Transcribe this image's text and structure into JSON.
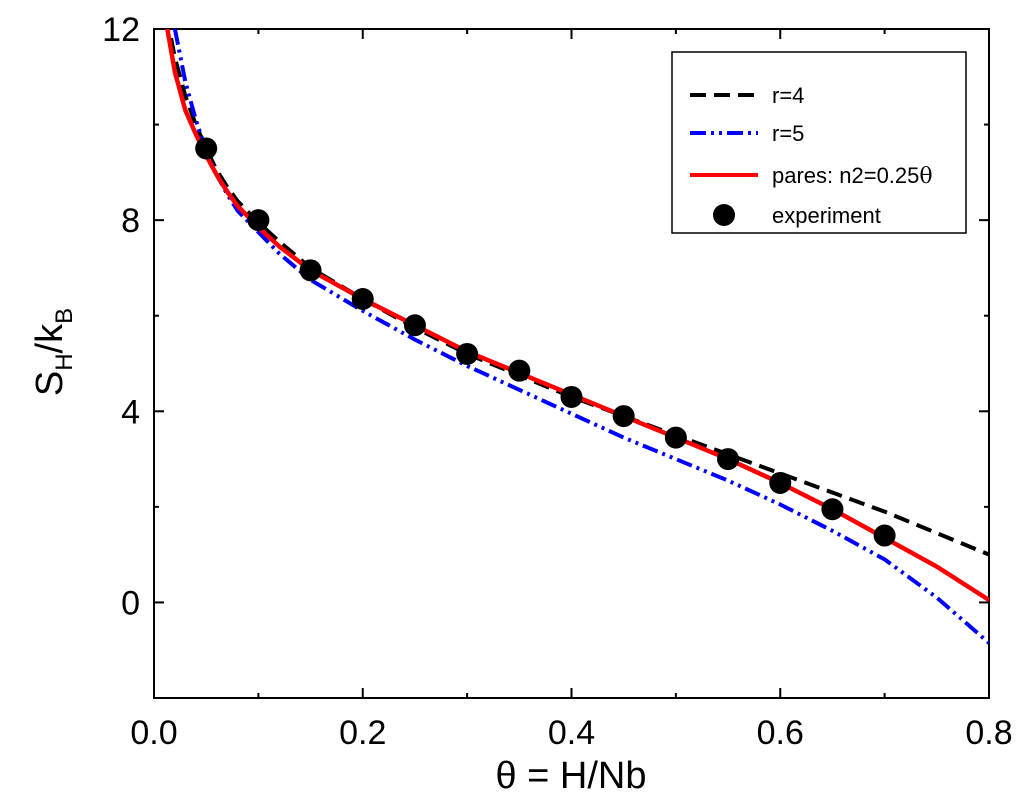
{
  "chart_data": {
    "type": "line",
    "title": "",
    "xlabel": "θ = H/Nb",
    "ylabel": {
      "main": "S",
      "sub1": "H",
      "slash": "/k",
      "sub2": "B"
    },
    "xlim": [
      0.0,
      0.8
    ],
    "ylim": [
      -2.0,
      12.0
    ],
    "xticks": [
      0.0,
      0.2,
      0.4,
      0.6,
      0.8
    ],
    "xtick_labels": [
      "0.0",
      "0.2",
      "0.4",
      "0.6",
      "0.8"
    ],
    "yticks": [
      0,
      4,
      8,
      12
    ],
    "ytick_labels": [
      "0",
      "4",
      "8",
      "12"
    ],
    "grid": false,
    "legend_position": "top-right",
    "legend_lines": [
      {
        "text": "r=4",
        "color": "#000000",
        "style": "dash",
        "x": [
          0.012,
          0.02,
          0.03,
          0.04,
          0.05,
          0.06,
          0.07,
          0.08,
          0.1,
          0.12,
          0.15,
          0.2,
          0.25,
          0.3,
          0.35,
          0.4,
          0.45,
          0.5,
          0.55,
          0.6,
          0.65,
          0.7,
          0.75,
          0.8
        ],
        "y": [
          12.3,
          11.4,
          10.6,
          10.0,
          9.5,
          9.05,
          8.7,
          8.4,
          7.95,
          7.55,
          7.0,
          6.35,
          5.75,
          5.2,
          4.75,
          4.3,
          3.9,
          3.5,
          3.1,
          2.7,
          2.3,
          1.9,
          1.45,
          1.0
        ]
      },
      {
        "text": "r=5",
        "color": "#0000ff",
        "style": "dashdotdot",
        "x": [
          0.02,
          0.03,
          0.04,
          0.05,
          0.06,
          0.07,
          0.08,
          0.1,
          0.12,
          0.15,
          0.2,
          0.25,
          0.3,
          0.35,
          0.4,
          0.45,
          0.5,
          0.55,
          0.6,
          0.65,
          0.7,
          0.75,
          0.8
        ],
        "y": [
          12.0,
          10.9,
          10.1,
          9.45,
          8.95,
          8.55,
          8.2,
          7.75,
          7.3,
          6.75,
          6.1,
          5.5,
          4.95,
          4.45,
          3.95,
          3.45,
          3.0,
          2.55,
          2.05,
          1.5,
          0.9,
          0.1,
          -0.85
        ]
      },
      {
        "text": "pares: n2=0.25",
        "text_suffix": "θ",
        "color": "#ff0000",
        "style": "solid",
        "x": [
          0.012,
          0.02,
          0.03,
          0.04,
          0.05,
          0.06,
          0.07,
          0.08,
          0.1,
          0.12,
          0.15,
          0.2,
          0.25,
          0.3,
          0.35,
          0.4,
          0.45,
          0.5,
          0.55,
          0.6,
          0.65,
          0.7,
          0.75,
          0.8
        ],
        "y": [
          12.1,
          11.1,
          10.3,
          9.8,
          9.35,
          8.95,
          8.6,
          8.3,
          7.85,
          7.45,
          6.95,
          6.35,
          5.8,
          5.25,
          4.8,
          4.35,
          3.9,
          3.45,
          3.0,
          2.5,
          1.95,
          1.35,
          0.75,
          0.05
        ]
      }
    ],
    "scatter": {
      "text": "experiment",
      "color": "#000000",
      "x": [
        0.05,
        0.1,
        0.15,
        0.2,
        0.25,
        0.3,
        0.35,
        0.4,
        0.45,
        0.5,
        0.55,
        0.6,
        0.65,
        0.7
      ],
      "y": [
        9.5,
        8.0,
        6.95,
        6.35,
        5.8,
        5.2,
        4.85,
        4.3,
        3.9,
        3.45,
        3.0,
        2.5,
        1.95,
        1.4
      ]
    }
  }
}
